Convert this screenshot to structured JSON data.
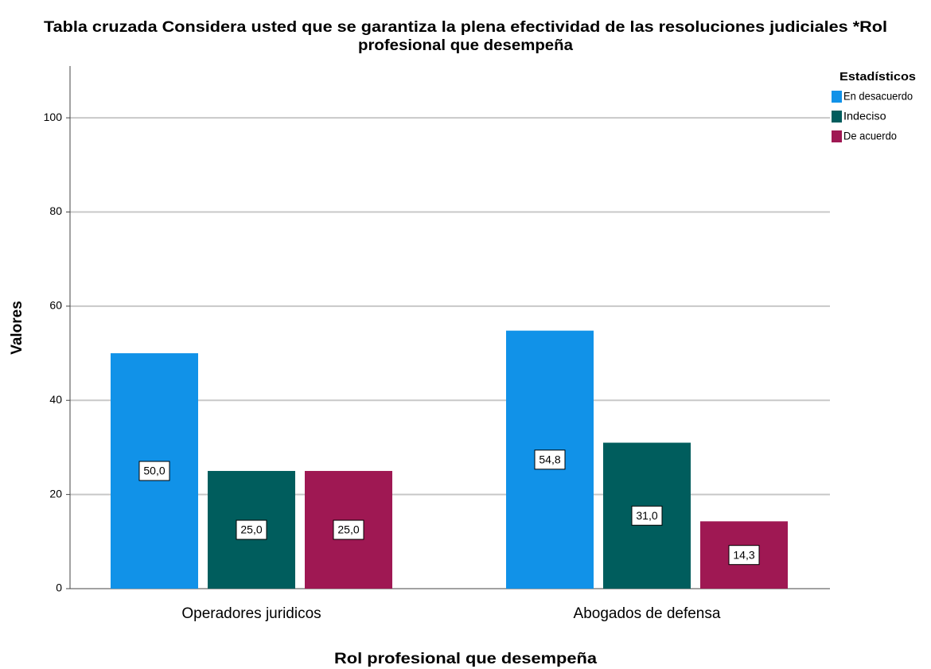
{
  "chart_data": {
    "type": "bar",
    "title": [
      "Tabla cruzada Considera usted que se garantiza la plena efectividad de las resoluciones judiciales *Rol",
      "profesional que desempeña"
    ],
    "x_label": "Rol profesional que desempeña",
    "y_label": "Valores",
    "categories": [
      "Operadores juridicos",
      "Abogados de defensa"
    ],
    "legend_title": "Estadísticos",
    "legend": "top-right",
    "grid": true,
    "ylim": [
      0,
      111
    ],
    "yticks": [
      0,
      20,
      40,
      60,
      80,
      100
    ],
    "series": [
      {
        "name": "En desacuerdo",
        "color": "#1192e8",
        "values": [
          50.0,
          54.8
        ],
        "value_labels": [
          "50,0",
          "54,8"
        ]
      },
      {
        "name": "Indeciso",
        "color": "#005d5d",
        "values": [
          25.0,
          31.0
        ],
        "value_labels": [
          "25,0",
          "31,0"
        ]
      },
      {
        "name": "De acuerdo",
        "color": "#9f1853",
        "values": [
          25.0,
          14.3
        ],
        "value_labels": [
          "25,0",
          "14,3"
        ]
      }
    ]
  }
}
